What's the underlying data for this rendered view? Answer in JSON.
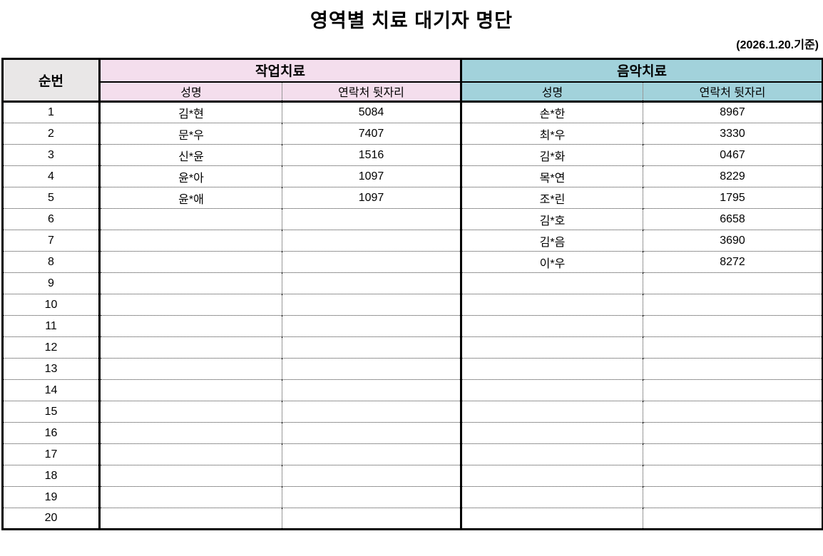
{
  "page": {
    "title": "영역별 치료 대기자 명단",
    "date_note": "(2026.1.20.기준)"
  },
  "colors": {
    "no_header_bg": "#E9E7E7",
    "occupational_bg": "#F4DEED",
    "music_bg": "#A2D2DB",
    "border": "#000000"
  },
  "table": {
    "no_header": "순번",
    "sections": [
      {
        "label": "작업치료",
        "sub": [
          "성명",
          "연락처 뒷자리"
        ]
      },
      {
        "label": "음악치료",
        "sub": [
          "성명",
          "연락처 뒷자리"
        ]
      }
    ],
    "rows": [
      {
        "no": "1",
        "ot_name": "김*현",
        "ot_phone": "5084",
        "mt_name": "손*한",
        "mt_phone": "8967"
      },
      {
        "no": "2",
        "ot_name": "문*우",
        "ot_phone": "7407",
        "mt_name": "최*우",
        "mt_phone": "3330"
      },
      {
        "no": "3",
        "ot_name": "신*윤",
        "ot_phone": "1516",
        "mt_name": "김*화",
        "mt_phone": "0467"
      },
      {
        "no": "4",
        "ot_name": "윤*아",
        "ot_phone": "1097",
        "mt_name": "목*연",
        "mt_phone": "8229"
      },
      {
        "no": "5",
        "ot_name": "윤*애",
        "ot_phone": "1097",
        "mt_name": "조*린",
        "mt_phone": "1795"
      },
      {
        "no": "6",
        "ot_name": "",
        "ot_phone": "",
        "mt_name": "김*호",
        "mt_phone": "6658"
      },
      {
        "no": "7",
        "ot_name": "",
        "ot_phone": "",
        "mt_name": "김*음",
        "mt_phone": "3690"
      },
      {
        "no": "8",
        "ot_name": "",
        "ot_phone": "",
        "mt_name": "이*우",
        "mt_phone": "8272"
      },
      {
        "no": "9",
        "ot_name": "",
        "ot_phone": "",
        "mt_name": "",
        "mt_phone": ""
      },
      {
        "no": "10",
        "ot_name": "",
        "ot_phone": "",
        "mt_name": "",
        "mt_phone": ""
      },
      {
        "no": "11",
        "ot_name": "",
        "ot_phone": "",
        "mt_name": "",
        "mt_phone": ""
      },
      {
        "no": "12",
        "ot_name": "",
        "ot_phone": "",
        "mt_name": "",
        "mt_phone": ""
      },
      {
        "no": "13",
        "ot_name": "",
        "ot_phone": "",
        "mt_name": "",
        "mt_phone": ""
      },
      {
        "no": "14",
        "ot_name": "",
        "ot_phone": "",
        "mt_name": "",
        "mt_phone": ""
      },
      {
        "no": "15",
        "ot_name": "",
        "ot_phone": "",
        "mt_name": "",
        "mt_phone": ""
      },
      {
        "no": "16",
        "ot_name": "",
        "ot_phone": "",
        "mt_name": "",
        "mt_phone": ""
      },
      {
        "no": "17",
        "ot_name": "",
        "ot_phone": "",
        "mt_name": "",
        "mt_phone": ""
      },
      {
        "no": "18",
        "ot_name": "",
        "ot_phone": "",
        "mt_name": "",
        "mt_phone": ""
      },
      {
        "no": "19",
        "ot_name": "",
        "ot_phone": "",
        "mt_name": "",
        "mt_phone": ""
      },
      {
        "no": "20",
        "ot_name": "",
        "ot_phone": "",
        "mt_name": "",
        "mt_phone": ""
      }
    ]
  }
}
